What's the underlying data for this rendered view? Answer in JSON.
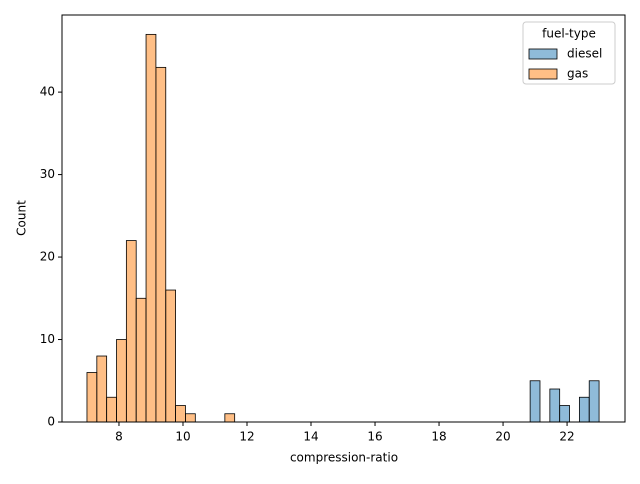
{
  "chart_data": {
    "type": "histogram",
    "xlabel": "compression-ratio",
    "ylabel": "Count",
    "bins": [
      7.0,
      7.308,
      7.615,
      7.923,
      8.231,
      8.538,
      8.846,
      9.154,
      9.462,
      9.769,
      10.077,
      10.385,
      10.692,
      11.0,
      11.308,
      11.615,
      11.923,
      12.231,
      12.538,
      12.846,
      13.154,
      13.462,
      13.769,
      14.077,
      14.385,
      14.692,
      15.0,
      15.308,
      15.615,
      15.923,
      16.231,
      16.538,
      16.846,
      17.154,
      17.462,
      17.769,
      18.077,
      18.385,
      18.692,
      19.0,
      19.308,
      19.615,
      19.923,
      20.231,
      20.538,
      20.846,
      21.154,
      21.462,
      21.769,
      22.077,
      22.385,
      22.692,
      23.0
    ],
    "series": [
      {
        "name": "diesel",
        "color": "#1f77b4",
        "values": [
          0,
          0,
          0,
          0,
          0,
          0,
          0,
          0,
          0,
          0,
          0,
          0,
          0,
          0,
          0,
          0,
          0,
          0,
          0,
          0,
          0,
          0,
          0,
          0,
          0,
          0,
          0,
          0,
          0,
          0,
          0,
          0,
          0,
          0,
          0,
          0,
          0,
          0,
          0,
          0,
          0,
          0,
          0,
          0,
          0,
          5,
          0,
          4,
          2,
          0,
          3,
          5
        ]
      },
      {
        "name": "gas",
        "color": "#ff7f0e",
        "values": [
          6,
          8,
          3,
          10,
          22,
          15,
          47,
          43,
          16,
          2,
          1,
          0,
          0,
          0,
          1,
          0,
          0,
          0,
          0,
          0,
          0,
          0,
          0,
          0,
          0,
          0,
          0,
          0,
          0,
          0,
          0,
          0,
          0,
          0,
          0,
          0,
          0,
          0,
          0,
          0,
          0,
          0,
          0,
          0,
          0,
          0,
          0,
          0,
          0,
          0,
          0,
          0
        ]
      }
    ],
    "legend_title": "fuel-type",
    "legend": "upper right",
    "xlim": [
      6.22,
      23.81
    ],
    "xticks": [
      8,
      10,
      12,
      14,
      16,
      18,
      20,
      22
    ],
    "ylim": [
      0,
      49.35
    ],
    "yticks": [
      0,
      10,
      20,
      30,
      40
    ]
  }
}
